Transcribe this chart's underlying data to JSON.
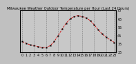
{
  "title": "Milwaukee Weather Outdoor Temperature per Hour (Last 24 Hours)",
  "hours": [
    0,
    1,
    2,
    3,
    4,
    5,
    6,
    7,
    8,
    9,
    10,
    11,
    12,
    13,
    14,
    15,
    16,
    17,
    18,
    19,
    20,
    21,
    22,
    23
  ],
  "temps": [
    38,
    36,
    34,
    33,
    32,
    31,
    31,
    33,
    38,
    45,
    53,
    60,
    65,
    68,
    69,
    68,
    66,
    63,
    58,
    52,
    47,
    43,
    40,
    37
  ],
  "line_color": "#cc0000",
  "marker_color": "#000000",
  "bg_color": "#c0c0c0",
  "plot_bg": "#c8c8c8",
  "grid_color": "#777777",
  "border_color": "#000000",
  "ylim": [
    25,
    75
  ],
  "ytick_values": [
    25,
    35,
    45,
    55,
    65,
    75
  ],
  "ylabel_fontsize": 3.5,
  "xlabel_fontsize": 3.5,
  "title_fontsize": 3.8,
  "grid_positions": [
    0,
    3,
    6,
    9,
    12,
    15,
    18,
    21,
    23
  ]
}
